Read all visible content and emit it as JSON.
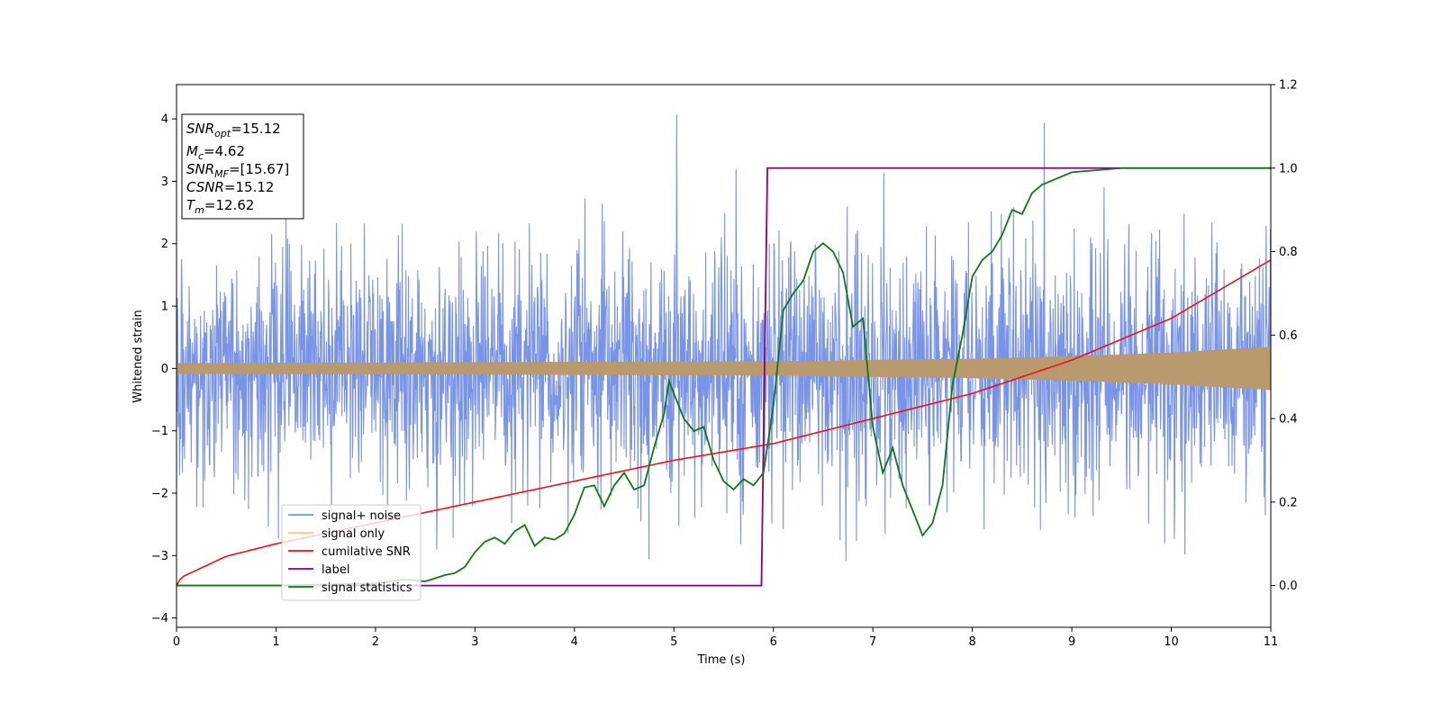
{
  "chart_data": {
    "type": "line",
    "xlabel": "Time (s)",
    "ylabel": "Whitened strain",
    "xlim": [
      0,
      11
    ],
    "ylim_left": [
      -4.15,
      4.55
    ],
    "ylim_right": [
      -0.1,
      1.2
    ],
    "x_ticks": [
      0,
      1,
      2,
      3,
      4,
      5,
      6,
      7,
      8,
      9,
      10,
      11
    ],
    "y_ticks_left": [
      -4,
      -3,
      -2,
      -1,
      0,
      1,
      2,
      3,
      4
    ],
    "y_ticks_left_labels": [
      "−4",
      "−3",
      "−2",
      "−1",
      "0",
      "1",
      "2",
      "3",
      "4"
    ],
    "y_ticks_right": [
      0.0,
      0.2,
      0.4,
      0.6,
      0.8,
      1.0,
      1.2
    ],
    "y_ticks_right_labels": [
      "0.0",
      "0.2",
      "0.4",
      "0.6",
      "0.8",
      "1.0",
      "1.2"
    ],
    "legend_position": "lower-left",
    "grid": false,
    "annotations": {
      "snr_opt": {
        "sym": "SNR",
        "sub": "opt",
        "value": "=15.12"
      },
      "mc": {
        "sym": "M",
        "sub": "c",
        "value": "=4.62"
      },
      "snr_mf": {
        "sym": "SNR",
        "sub": "MF",
        "value": "=[15.67]"
      },
      "csnr": {
        "sym": "CSNR",
        "sub": "",
        "value": "=15.12"
      },
      "tm": {
        "sym": "T",
        "sub": "m",
        "value": "=12.62"
      }
    },
    "series": [
      {
        "name": "signal+ noise",
        "axis": "left",
        "color": "#7893e8",
        "description": "whitened noise, std about 1, spikes up to 4.2"
      },
      {
        "name": "signal only",
        "axis": "left",
        "color": "#ffc47a",
        "envelope": {
          "x": [
            0,
            2,
            4,
            6,
            8,
            9,
            10,
            11
          ],
          "amp": [
            0.08,
            0.09,
            0.1,
            0.11,
            0.15,
            0.19,
            0.25,
            0.34
          ]
        }
      },
      {
        "name": "cumilative SNR",
        "axis": "right",
        "color": "#ee1111",
        "x": [
          0,
          0.05,
          0.5,
          1,
          2,
          3,
          4,
          5,
          6,
          7,
          8,
          9,
          10,
          11
        ],
        "y": [
          0.0,
          0.02,
          0.07,
          0.1,
          0.15,
          0.2,
          0.25,
          0.3,
          0.34,
          0.4,
          0.46,
          0.54,
          0.64,
          0.78
        ]
      },
      {
        "name": "label",
        "axis": "right",
        "color": "#880088",
        "x": [
          0,
          5.88,
          5.94,
          11
        ],
        "y": [
          0,
          0,
          1,
          1
        ]
      },
      {
        "name": "signal statistics",
        "axis": "right",
        "color": "#117711",
        "x": [
          0,
          1,
          2,
          2.3,
          2.5,
          2.7,
          2.8,
          2.9,
          3.0,
          3.1,
          3.2,
          3.3,
          3.4,
          3.5,
          3.6,
          3.7,
          3.8,
          3.9,
          4.0,
          4.1,
          4.2,
          4.3,
          4.4,
          4.5,
          4.6,
          4.7,
          4.8,
          4.9,
          4.95,
          5.0,
          5.1,
          5.2,
          5.3,
          5.4,
          5.5,
          5.6,
          5.7,
          5.8,
          5.9,
          6.0,
          6.1,
          6.2,
          6.3,
          6.4,
          6.5,
          6.6,
          6.7,
          6.8,
          6.9,
          7.0,
          7.1,
          7.2,
          7.3,
          7.4,
          7.5,
          7.6,
          7.7,
          7.8,
          7.9,
          8.0,
          8.1,
          8.2,
          8.3,
          8.4,
          8.5,
          8.6,
          8.7,
          8.8,
          9.0,
          9.5,
          10.0,
          10.5,
          11.0
        ],
        "y": [
          0.0,
          0.0,
          0.005,
          0.015,
          0.01,
          0.025,
          0.03,
          0.045,
          0.08,
          0.105,
          0.115,
          0.1,
          0.13,
          0.145,
          0.095,
          0.115,
          0.11,
          0.125,
          0.17,
          0.235,
          0.24,
          0.19,
          0.24,
          0.27,
          0.23,
          0.24,
          0.33,
          0.41,
          0.49,
          0.46,
          0.4,
          0.37,
          0.38,
          0.3,
          0.25,
          0.23,
          0.255,
          0.24,
          0.27,
          0.43,
          0.66,
          0.7,
          0.73,
          0.8,
          0.82,
          0.8,
          0.75,
          0.62,
          0.64,
          0.38,
          0.27,
          0.33,
          0.24,
          0.18,
          0.12,
          0.15,
          0.24,
          0.48,
          0.6,
          0.74,
          0.78,
          0.8,
          0.84,
          0.9,
          0.89,
          0.94,
          0.96,
          0.97,
          0.99,
          1.0,
          1.0,
          1.0,
          1.0
        ]
      }
    ]
  }
}
